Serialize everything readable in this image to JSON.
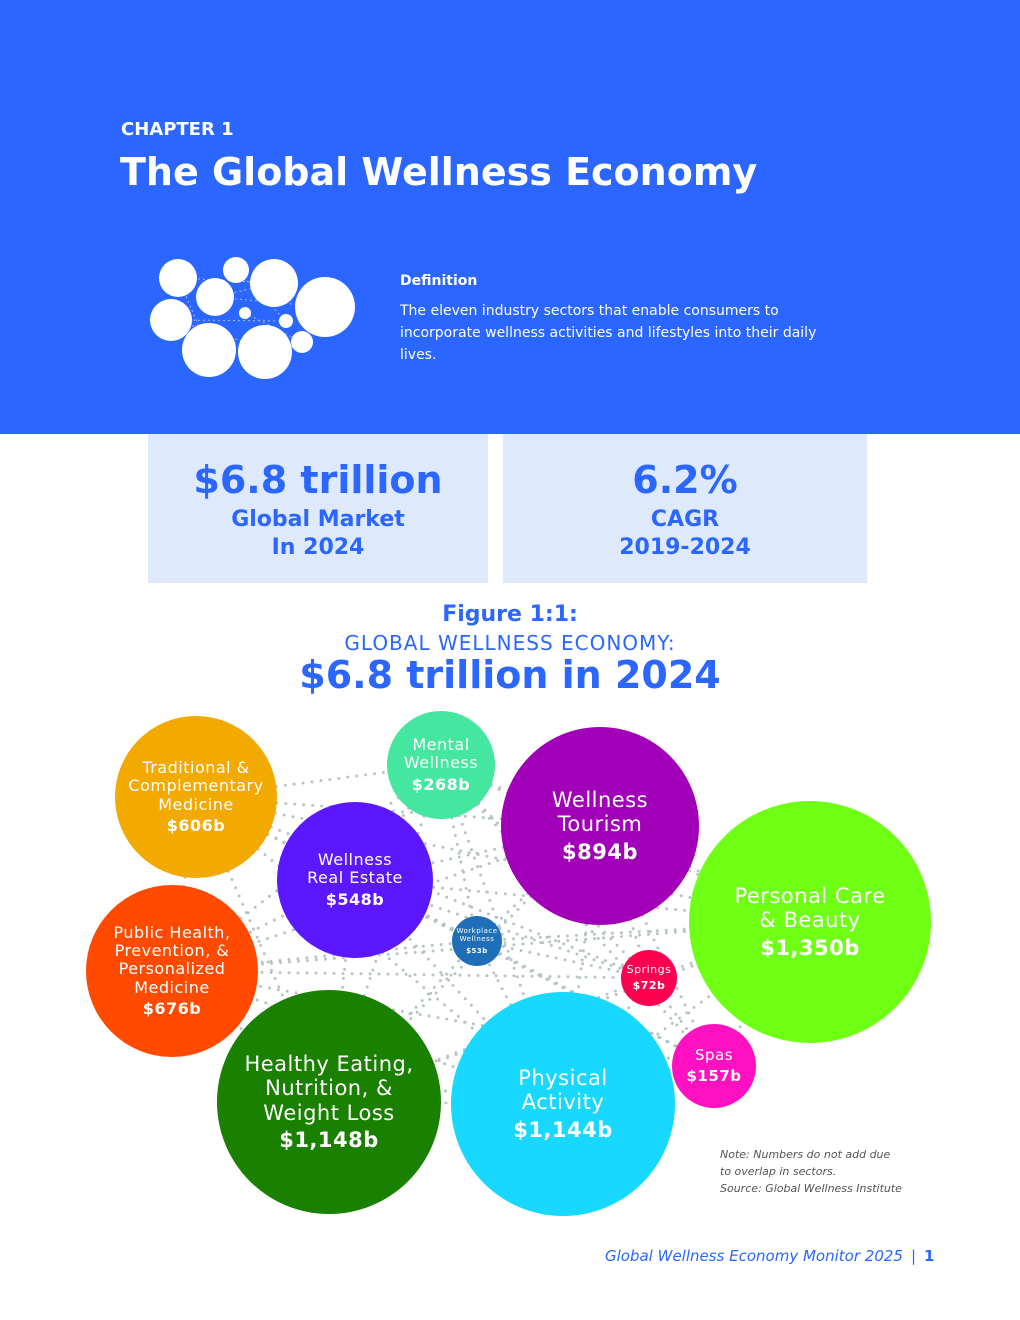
{
  "header": {
    "chapter": "CHAPTER 1",
    "title": "The Global Wellness Economy",
    "definition_heading": "Definition",
    "definition_text": "The eleven industry sectors that enable consumers to incorporate wellness activities and lifestyles into their daily lives."
  },
  "stats": [
    {
      "value": "$6.8 trillion",
      "label1": "Global Market",
      "label2": "In 2024"
    },
    {
      "value": "6.2%",
      "label1": "CAGR",
      "label2": "2019-2024"
    }
  ],
  "figure": {
    "number": "Figure 1:1:",
    "subtitle": "GLOBAL WELLNESS ECONOMY:",
    "headline": "$6.8 trillion in 2024"
  },
  "chart_data": {
    "type": "bubble",
    "title": "GLOBAL WELLNESS ECONOMY: $6.8 trillion in 2024",
    "unit": "US$ billions",
    "sectors": [
      {
        "name": "Traditional & Complementary Medicine",
        "lines": [
          "Traditional &",
          "Complementary",
          "Medicine"
        ],
        "label": "$606b",
        "value": 606,
        "color": "#F2A900"
      },
      {
        "name": "Mental Wellness",
        "lines": [
          "Mental",
          "Wellness"
        ],
        "label": "$268b",
        "value": 268,
        "color": "#45E6A0"
      },
      {
        "name": "Wellness Tourism",
        "lines": [
          "Wellness",
          "Tourism"
        ],
        "label": "$894b",
        "value": 894,
        "color": "#A100B8"
      },
      {
        "name": "Personal Care & Beauty",
        "lines": [
          "Personal Care",
          "& Beauty"
        ],
        "label": "$1,350b",
        "value": 1350,
        "color": "#6EFF14"
      },
      {
        "name": "Wellness Real Estate",
        "lines": [
          "Wellness",
          "Real Estate"
        ],
        "label": "$548b",
        "value": 548,
        "color": "#5B18FF"
      },
      {
        "name": "Workplace Wellness",
        "lines": [
          "Workplace",
          "Wellness"
        ],
        "label": "$53b",
        "value": 53,
        "color": "#1E6FB8"
      },
      {
        "name": "Springs",
        "lines": [
          "Springs"
        ],
        "label": "$72b",
        "value": 72,
        "color": "#FF0050"
      },
      {
        "name": "Public Health, Prevention, & Personalized Medicine",
        "lines": [
          "Public Health,",
          "Prevention, &",
          "Personalized",
          "Medicine"
        ],
        "label": "$676b",
        "value": 676,
        "color": "#FF4A00"
      },
      {
        "name": "Healthy Eating, Nutrition, & Weight Loss",
        "lines": [
          "Healthy Eating,",
          "Nutrition, &",
          "Weight Loss"
        ],
        "label": "$1,148b",
        "value": 1148,
        "color": "#1A8000"
      },
      {
        "name": "Physical Activity",
        "lines": [
          "Physical",
          "Activity"
        ],
        "label": "$1,144b",
        "value": 1144,
        "color": "#18D8FF"
      },
      {
        "name": "Spas",
        "lines": [
          "Spas"
        ],
        "label": "$157b",
        "value": 157,
        "color": "#FF10C0"
      }
    ]
  },
  "note": [
    "Note: Numbers do not add due",
    "to overlap in sectors.",
    "Source: Global Wellness Institute"
  ],
  "footer": {
    "publication": "Global Wellness Economy Monitor 2025",
    "page": "1"
  }
}
